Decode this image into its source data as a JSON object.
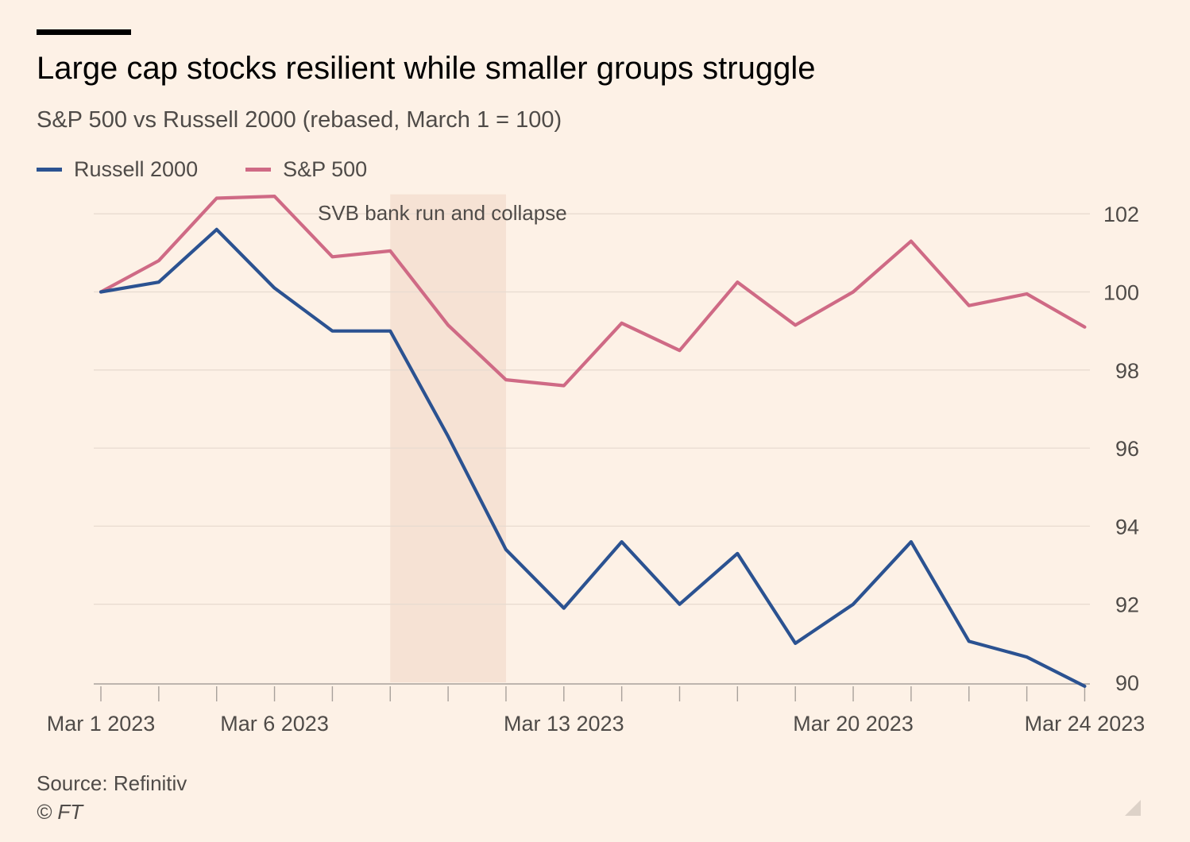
{
  "title": "Large cap stocks resilient while smaller groups struggle",
  "subtitle": "S&P 500 vs Russell 2000 (rebased, March 1 = 100)",
  "source": "Source: Refinitiv",
  "copyright": "© FT",
  "colors": {
    "background": "#fdf1e6",
    "russell": "#2b5291",
    "sp500": "#cf6a85",
    "shade": "#f6e2d4",
    "grid": "#e8dbd0",
    "axis": "#a8a19b"
  },
  "chart_data": {
    "type": "line",
    "x": [
      "Mar 1 2023",
      "Mar 2 2023",
      "Mar 3 2023",
      "Mar 6 2023",
      "Mar 7 2023",
      "Mar 8 2023",
      "Mar 9 2023",
      "Mar 10 2023",
      "Mar 13 2023",
      "Mar 14 2023",
      "Mar 15 2023",
      "Mar 16 2023",
      "Mar 17 2023",
      "Mar 20 2023",
      "Mar 21 2023",
      "Mar 22 2023",
      "Mar 23 2023",
      "Mar 24 2023"
    ],
    "series": [
      {
        "name": "Russell 2000",
        "color": "#2b5291",
        "values": [
          100.0,
          100.25,
          101.6,
          100.1,
          99.0,
          99.0,
          96.3,
          93.4,
          91.9,
          93.6,
          92.0,
          93.3,
          91.0,
          92.0,
          93.6,
          91.05,
          90.65,
          89.9
        ]
      },
      {
        "name": "S&P 500",
        "color": "#cf6a85",
        "values": [
          100.0,
          100.8,
          102.4,
          102.45,
          100.9,
          101.05,
          99.15,
          97.75,
          97.6,
          99.2,
          98.5,
          100.25,
          99.15,
          100.0,
          101.3,
          99.65,
          99.95,
          99.1
        ]
      }
    ],
    "ylim": [
      90,
      102.5
    ],
    "yticks": [
      90,
      92,
      94,
      96,
      98,
      100,
      102
    ],
    "xtick_labels": [
      {
        "index": 0,
        "label": "Mar 1 2023"
      },
      {
        "index": 3,
        "label": "Mar 6 2023"
      },
      {
        "index": 8,
        "label": "Mar 13 2023"
      },
      {
        "index": 13,
        "label": "Mar 20 2023"
      },
      {
        "index": 17,
        "label": "Mar 24 2023"
      }
    ],
    "y_axis_side": "right",
    "grid": true,
    "legend_position": "top-left",
    "annotation": {
      "label": "SVB bank run and collapse",
      "x_start": "Mar 8 2023",
      "x_end": "Mar 10 2023"
    }
  }
}
